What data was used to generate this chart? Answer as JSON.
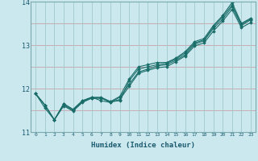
{
  "xlabel": "Humidex (Indice chaleur)",
  "bg_color": "#cce8ef",
  "grid_color_h": "#c8a0a8",
  "grid_color_v": "#9fc8cc",
  "line_color": "#1a6e6a",
  "xlim": [
    -0.5,
    23.5
  ],
  "ylim": [
    11.0,
    14.0
  ],
  "yticks": [
    11,
    12,
    13,
    14
  ],
  "xticks": [
    0,
    1,
    2,
    3,
    4,
    5,
    6,
    7,
    8,
    9,
    10,
    11,
    12,
    13,
    14,
    15,
    16,
    17,
    18,
    19,
    20,
    21,
    22,
    23
  ],
  "series": [
    [
      11.88,
      11.62,
      11.28,
      11.65,
      11.52,
      11.72,
      11.8,
      11.8,
      11.7,
      11.82,
      12.22,
      12.5,
      12.55,
      12.6,
      12.6,
      12.7,
      12.85,
      13.08,
      13.15,
      13.45,
      13.68,
      13.98,
      13.5,
      13.62
    ],
    [
      11.88,
      11.62,
      11.28,
      11.65,
      11.52,
      11.72,
      11.8,
      11.72,
      11.68,
      11.8,
      12.1,
      12.38,
      12.45,
      12.52,
      12.55,
      12.65,
      12.78,
      13.02,
      13.1,
      13.38,
      13.6,
      13.88,
      13.45,
      13.58
    ],
    [
      11.88,
      11.55,
      11.28,
      11.6,
      11.48,
      11.68,
      11.78,
      11.78,
      11.68,
      11.75,
      12.05,
      12.35,
      12.42,
      12.48,
      12.5,
      12.62,
      12.75,
      12.98,
      13.05,
      13.32,
      13.55,
      13.82,
      13.4,
      13.52
    ],
    [
      11.88,
      11.62,
      11.28,
      11.62,
      11.5,
      11.7,
      11.78,
      11.78,
      11.7,
      11.72,
      12.18,
      12.45,
      12.5,
      12.55,
      12.58,
      12.68,
      12.82,
      13.05,
      13.12,
      13.42,
      13.65,
      13.92,
      13.48,
      13.6
    ]
  ]
}
